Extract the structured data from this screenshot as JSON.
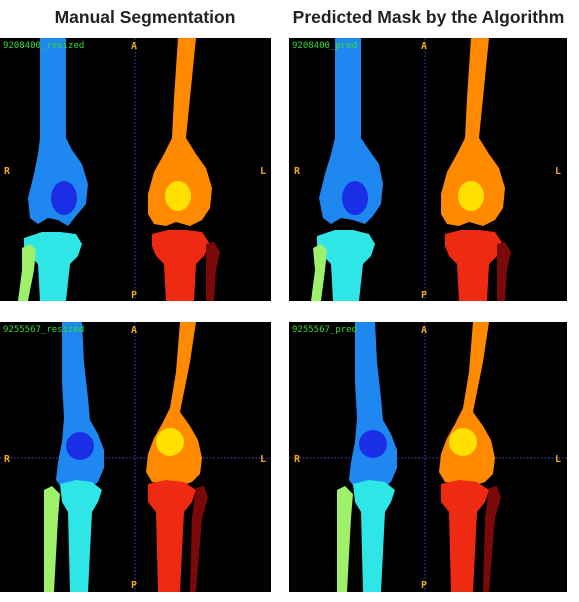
{
  "titles": {
    "manual": "Manual Segmentation",
    "predicted": "Predicted Mask by the Algorithm"
  },
  "panels": [
    {
      "id": "9208400_resized"
    },
    {
      "id": "9208400_pred"
    },
    {
      "id": "9255567_resized"
    },
    {
      "id": "9255567_pred"
    }
  ],
  "orientation": {
    "anterior": "A",
    "posterior": "P",
    "right": "R",
    "left": "L"
  },
  "colors": {
    "background": "#000000",
    "femur_right": "#1e88f0",
    "femur_left": "#ff8a00",
    "patella_right": "#1a2ee6",
    "patella_left": "#ffe000",
    "tibia_right": "#2fe6e6",
    "tibia_left": "#ee2b12",
    "fibula_right": "#9ef06a",
    "fibula_left": "#7a0a0a",
    "panel_label": "#33dd33",
    "orientation_label": "#f0a820",
    "crosshair": "#4a4ad6"
  }
}
